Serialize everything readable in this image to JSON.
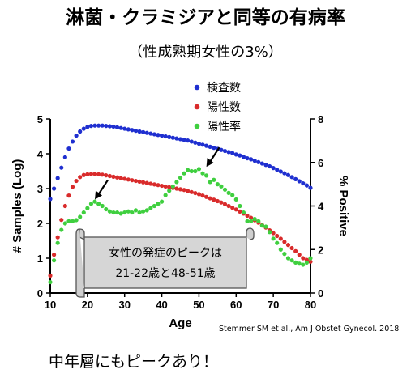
{
  "header": {
    "title": "淋菌・クラミジアと同等の有病率",
    "subtitle": "（性成熟期女性の3%）"
  },
  "footer": {
    "text": "中年層にもピークあり！"
  },
  "citation": "Stemmer SM et al., Am J Obstet Gynecol. 2018",
  "callout": {
    "line1": "女性の発症のピークは",
    "line2": "21-22歳と48-51歳"
  },
  "chart_data": {
    "type": "scatter",
    "xlabel": "Age",
    "ylabel_left": "# Samples (Log)",
    "ylabel_right": "% Positive",
    "xlim": [
      10,
      80
    ],
    "ylim_left": [
      0,
      5
    ],
    "ylim_right": [
      0,
      8
    ],
    "x_ticks": [
      10,
      20,
      30,
      40,
      50,
      60,
      70,
      80
    ],
    "y_left_ticks": [
      0,
      1,
      2,
      3,
      4,
      5
    ],
    "y_right_ticks": [
      0,
      2,
      4,
      6,
      8
    ],
    "legend_position": "top-right",
    "grid": false,
    "series": [
      {
        "name": "検査数",
        "color": "#1f2fd0",
        "axis": "left",
        "x": [
          10,
          11,
          12,
          13,
          14,
          15,
          16,
          17,
          18,
          19,
          20,
          21,
          22,
          23,
          24,
          25,
          26,
          27,
          28,
          29,
          30,
          31,
          32,
          33,
          34,
          35,
          36,
          37,
          38,
          39,
          40,
          41,
          42,
          43,
          44,
          45,
          46,
          47,
          48,
          49,
          50,
          51,
          52,
          53,
          54,
          55,
          56,
          57,
          58,
          59,
          60,
          61,
          62,
          63,
          64,
          65,
          66,
          67,
          68,
          69,
          70,
          71,
          72,
          73,
          74,
          75,
          76,
          77,
          78,
          79,
          80
        ],
        "y": [
          2.7,
          3.0,
          3.3,
          3.6,
          3.9,
          4.15,
          4.35,
          4.52,
          4.64,
          4.72,
          4.77,
          4.8,
          4.81,
          4.81,
          4.81,
          4.8,
          4.79,
          4.78,
          4.76,
          4.74,
          4.72,
          4.7,
          4.68,
          4.66,
          4.64,
          4.62,
          4.6,
          4.58,
          4.56,
          4.54,
          4.52,
          4.5,
          4.48,
          4.46,
          4.44,
          4.42,
          4.4,
          4.38,
          4.35,
          4.32,
          4.29,
          4.26,
          4.23,
          4.2,
          4.17,
          4.14,
          4.11,
          4.08,
          4.05,
          4.02,
          3.98,
          3.95,
          3.91,
          3.87,
          3.84,
          3.8,
          3.76,
          3.72,
          3.68,
          3.64,
          3.59,
          3.54,
          3.49,
          3.44,
          3.39,
          3.33,
          3.27,
          3.21,
          3.15,
          3.09,
          3.02
        ]
      },
      {
        "name": "陽性数",
        "color": "#d92b2b",
        "axis": "left",
        "x": [
          10,
          11,
          12,
          13,
          14,
          15,
          16,
          17,
          18,
          19,
          20,
          21,
          22,
          23,
          24,
          25,
          26,
          27,
          28,
          29,
          30,
          31,
          32,
          33,
          34,
          35,
          36,
          37,
          38,
          39,
          40,
          41,
          42,
          43,
          44,
          45,
          46,
          47,
          48,
          49,
          50,
          51,
          52,
          53,
          54,
          55,
          56,
          57,
          58,
          59,
          60,
          61,
          62,
          63,
          64,
          65,
          66,
          67,
          68,
          69,
          70,
          71,
          72,
          73,
          74,
          75,
          76,
          77,
          78,
          79,
          80
        ],
        "y": [
          0.5,
          1.1,
          1.6,
          2.1,
          2.5,
          2.8,
          3.05,
          3.22,
          3.33,
          3.39,
          3.41,
          3.42,
          3.42,
          3.41,
          3.4,
          3.38,
          3.36,
          3.34,
          3.32,
          3.3,
          3.28,
          3.26,
          3.24,
          3.22,
          3.2,
          3.18,
          3.16,
          3.14,
          3.12,
          3.1,
          3.08,
          3.06,
          3.04,
          3.02,
          3.0,
          2.98,
          2.96,
          2.93,
          2.9,
          2.87,
          2.84,
          2.8,
          2.76,
          2.72,
          2.68,
          2.64,
          2.6,
          2.55,
          2.5,
          2.45,
          2.4,
          2.34,
          2.28,
          2.22,
          2.16,
          2.09,
          2.02,
          1.95,
          1.88,
          1.8,
          1.72,
          1.64,
          1.56,
          1.47,
          1.38,
          1.29,
          1.2,
          1.1,
          1.0,
          0.95,
          0.9
        ]
      },
      {
        "name": "陽性率",
        "color": "#3fcf3f",
        "axis": "right",
        "x": [
          10,
          11,
          12,
          13,
          14,
          15,
          16,
          17,
          18,
          19,
          20,
          21,
          22,
          23,
          24,
          25,
          26,
          27,
          28,
          29,
          30,
          31,
          32,
          33,
          34,
          35,
          36,
          37,
          38,
          39,
          40,
          41,
          42,
          43,
          44,
          45,
          46,
          47,
          48,
          49,
          50,
          51,
          52,
          53,
          54,
          55,
          56,
          57,
          58,
          59,
          60,
          61,
          62,
          63,
          64,
          65,
          66,
          67,
          68,
          69,
          70,
          71,
          72,
          73,
          74,
          75,
          76,
          77,
          78,
          79,
          80
        ],
        "y": [
          0.5,
          1.5,
          2.3,
          2.9,
          3.2,
          3.3,
          3.3,
          3.35,
          3.5,
          3.7,
          3.9,
          4.1,
          4.2,
          4.1,
          4.0,
          3.85,
          3.75,
          3.7,
          3.7,
          3.65,
          3.7,
          3.75,
          3.7,
          3.8,
          3.7,
          3.75,
          3.8,
          3.9,
          4.0,
          4.1,
          4.2,
          4.5,
          4.7,
          4.9,
          5.1,
          5.3,
          5.5,
          5.65,
          5.6,
          5.6,
          5.7,
          5.5,
          5.4,
          5.1,
          5.2,
          5.0,
          4.9,
          4.75,
          4.6,
          4.5,
          4.3,
          4.0,
          3.7,
          3.3,
          3.3,
          3.4,
          3.3,
          3.1,
          3.05,
          2.8,
          2.5,
          2.3,
          2.0,
          1.8,
          1.6,
          1.5,
          1.4,
          1.35,
          1.3,
          1.4,
          1.6
        ]
      }
    ],
    "annotations": [
      {
        "type": "arrow",
        "x": 22,
        "y_right": 4.3
      },
      {
        "type": "arrow",
        "x": 52,
        "y_right": 5.8
      }
    ]
  }
}
